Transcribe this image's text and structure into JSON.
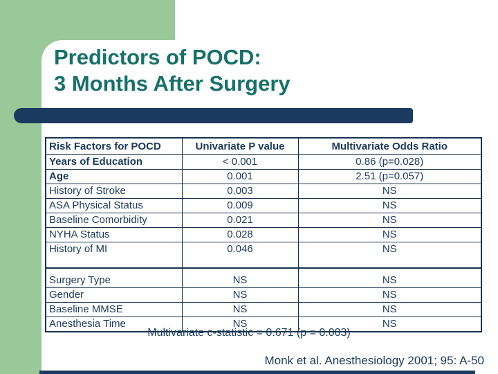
{
  "slide": {
    "title_line1": "Predictors of POCD:",
    "title_line2": "3 Months After Surgery",
    "footnote": "Multivariate c-statistic = 0.671 (p = 0.003)",
    "citation": "Monk et al. Anesthesiology 2001; 95: A-50"
  },
  "table": {
    "headers": [
      "Risk Factors for POCD",
      "Univariate P value",
      "Multivariate Odds Ratio"
    ],
    "section1": [
      {
        "factor": "Years of Education",
        "p": "< 0.001",
        "or": "0.86 (p=0.028)",
        "bold": true
      },
      {
        "factor": "Age",
        "p": "0.001",
        "or": "2.51 (p=0.057)",
        "bold": true
      },
      {
        "factor": "History of Stroke",
        "p": "0.003",
        "or": "NS",
        "bold": false
      },
      {
        "factor": "ASA Physical Status",
        "p": "0.009",
        "or": "NS",
        "bold": false
      },
      {
        "factor": "Baseline Comorbidity",
        "p": "0.021",
        "or": "NS",
        "bold": false
      },
      {
        "factor": "NYHA Status",
        "p": "0.028",
        "or": "NS",
        "bold": false
      },
      {
        "factor": "History of MI",
        "p": "0.046",
        "or": "NS",
        "bold": false
      }
    ],
    "section2": [
      {
        "factor": "Surgery Type",
        "p": "NS",
        "or": "NS",
        "bold": false
      },
      {
        "factor": "Gender",
        "p": "NS",
        "or": "NS",
        "bold": false
      },
      {
        "factor": "Baseline MMSE",
        "p": "NS",
        "or": "NS",
        "bold": false
      },
      {
        "factor": "Anesthesia Time",
        "p": "NS",
        "or": "NS",
        "bold": false
      }
    ]
  },
  "colors": {
    "green": "#99C899",
    "navy": "#1B3A60",
    "teal": "#17706A",
    "table_text": "#1C3A5C",
    "border": "#16324F",
    "bg": "#FFFFFF"
  }
}
